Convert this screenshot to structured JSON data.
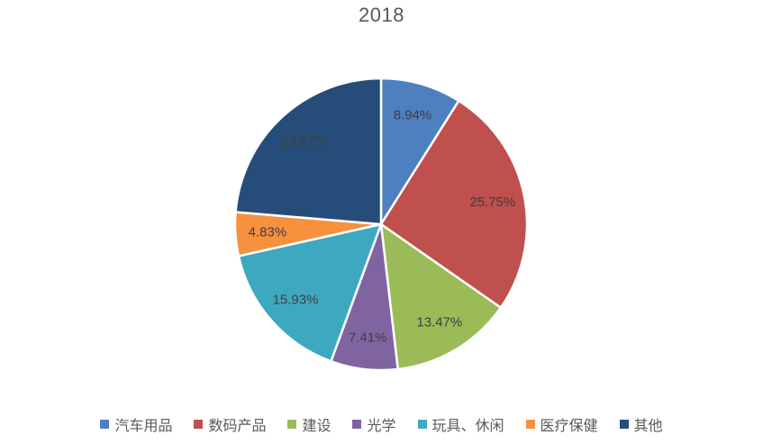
{
  "chart_data": {
    "type": "pie",
    "title": "2018",
    "unit": "%",
    "categories": [
      "汽车用品",
      "数码产品",
      "建设",
      "光学",
      "玩具、休闲",
      "医疗保健",
      "其他"
    ],
    "values": [
      8.94,
      25.75,
      13.47,
      7.41,
      15.93,
      4.83,
      23.67
    ],
    "labels": [
      "8.94%",
      "25.75%",
      "13.47%",
      "7.41%",
      "15.93%",
      "4.83%",
      "23.67%"
    ],
    "colors": [
      "#4e7fbe",
      "#bf504d",
      "#9bbb59",
      "#8064a2",
      "#3ea8c1",
      "#f6913e",
      "#264d79"
    ],
    "start_angle_deg": 0,
    "direction": "clockwise",
    "legend_position": "bottom",
    "label_placement": "inside",
    "title_color": "#595959",
    "label_color": "#3f3f3f",
    "slice_border_color": "#ffffff"
  }
}
